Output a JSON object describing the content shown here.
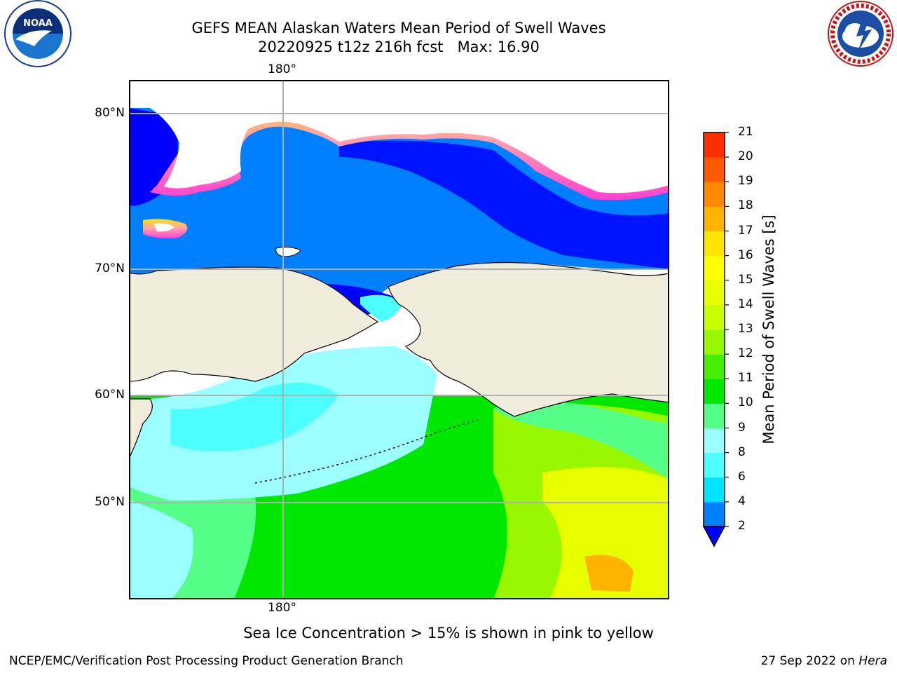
{
  "title": {
    "line1": "GEFS MEAN Alaskan Waters Mean Period of Swell Waves",
    "line2": "20220925 t12z 216h fcst   Max: 16.90"
  },
  "logos": {
    "noaa": {
      "icon": "noaa-logo",
      "text": "NOAA",
      "ring_text": "NATIONAL OCEANIC AND ATMOSPHERIC ADMINISTRATION · U.S. DEPARTMENT OF COMMERCE"
    },
    "nws": {
      "icon": "nws-logo",
      "ring_text": "NATIONAL WEATHER SERVICE"
    }
  },
  "map": {
    "lon_label_top": "180°",
    "lon_label_bottom": "180°",
    "lat_labels": [
      "80°N",
      "70°N",
      "60°N",
      "50°N"
    ],
    "colors": {
      "land": "#efecdc",
      "ice_low": "#ff3ec8",
      "ice_high": "#ffe400",
      "deep_blue": "#0000ff",
      "blue": "#0080ff"
    }
  },
  "colorbar": {
    "ticks": [
      "2",
      "4",
      "6",
      "8",
      "9",
      "10",
      "11",
      "12",
      "13",
      "14",
      "15",
      "16",
      "17",
      "18",
      "19",
      "20",
      "21"
    ],
    "colors": [
      "#0080ff",
      "#00e4ff",
      "#4dffff",
      "#9bffff",
      "#55ff87",
      "#00e800",
      "#47ee00",
      "#98f800",
      "#c8ff00",
      "#e8ff00",
      "#ffff00",
      "#ffe500",
      "#ffb400",
      "#ff8a00",
      "#ff5a00",
      "#ff2e00"
    ],
    "under_color": "#0000ff",
    "label": "Mean Period of Swell Waves [s]"
  },
  "caption": "Sea Ice Concentration > 15% is shown in pink to yellow",
  "footer": {
    "left": "NCEP/EMC/Verification Post Processing Product Generation Branch",
    "right_date": "27 Sep 2022 on ",
    "right_host": "Hera"
  }
}
